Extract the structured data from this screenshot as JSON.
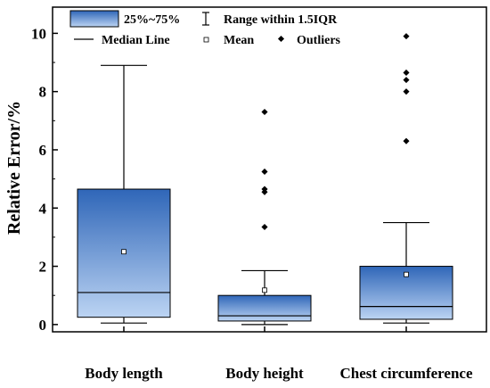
{
  "chart_data": {
    "type": "box",
    "ylabel": "Relative Error/%",
    "ylim": [
      -0.25,
      10.9
    ],
    "yticks": [
      0,
      2,
      4,
      6,
      8,
      10
    ],
    "categories": [
      "Body length",
      "Body height",
      "Chest circumference"
    ],
    "boxes": [
      {
        "category": "Body length",
        "whisker_low": 0.05,
        "q1": 0.25,
        "median": 1.1,
        "q3": 4.65,
        "whisker_high": 8.9,
        "mean": 2.5,
        "outliers": []
      },
      {
        "category": "Body height",
        "whisker_low": 0.0,
        "q1": 0.12,
        "median": 0.3,
        "q3": 1.0,
        "whisker_high": 1.85,
        "mean": 1.18,
        "outliers": [
          3.35,
          4.55,
          4.65,
          5.25,
          7.3
        ]
      },
      {
        "category": "Chest circumference",
        "whisker_low": 0.05,
        "q1": 0.18,
        "median": 0.62,
        "q3": 2.0,
        "whisker_high": 3.5,
        "mean": 1.72,
        "outliers": [
          6.3,
          8.0,
          8.4,
          8.65,
          9.9
        ]
      }
    ],
    "legend": {
      "box": "25%~75%",
      "median": "Median Line",
      "range": "Range within 1.5IQR",
      "mean": "Mean",
      "outliers": "Outliers",
      "placement": "top"
    },
    "colors": {
      "box_top": "#2f66b8",
      "box_bottom": "#bcd4f3",
      "line": "#000000"
    }
  }
}
